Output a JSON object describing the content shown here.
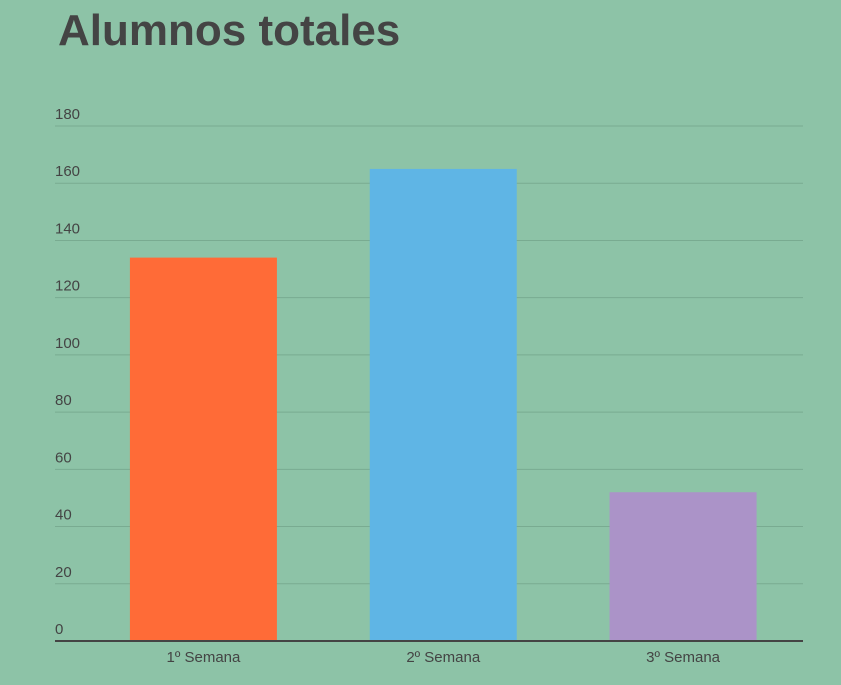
{
  "chart_data": {
    "type": "bar",
    "title": "Alumnos totales",
    "categories": [
      "1º Semana",
      "2º Semana",
      "3º Semana"
    ],
    "values": [
      134,
      165,
      52
    ],
    "colors": [
      "#ff6b37",
      "#5fb5e5",
      "#ab93c8"
    ],
    "ylim": [
      0,
      180
    ],
    "yticks": [
      0,
      20,
      40,
      60,
      80,
      100,
      120,
      140,
      160,
      180
    ],
    "grid": true
  }
}
